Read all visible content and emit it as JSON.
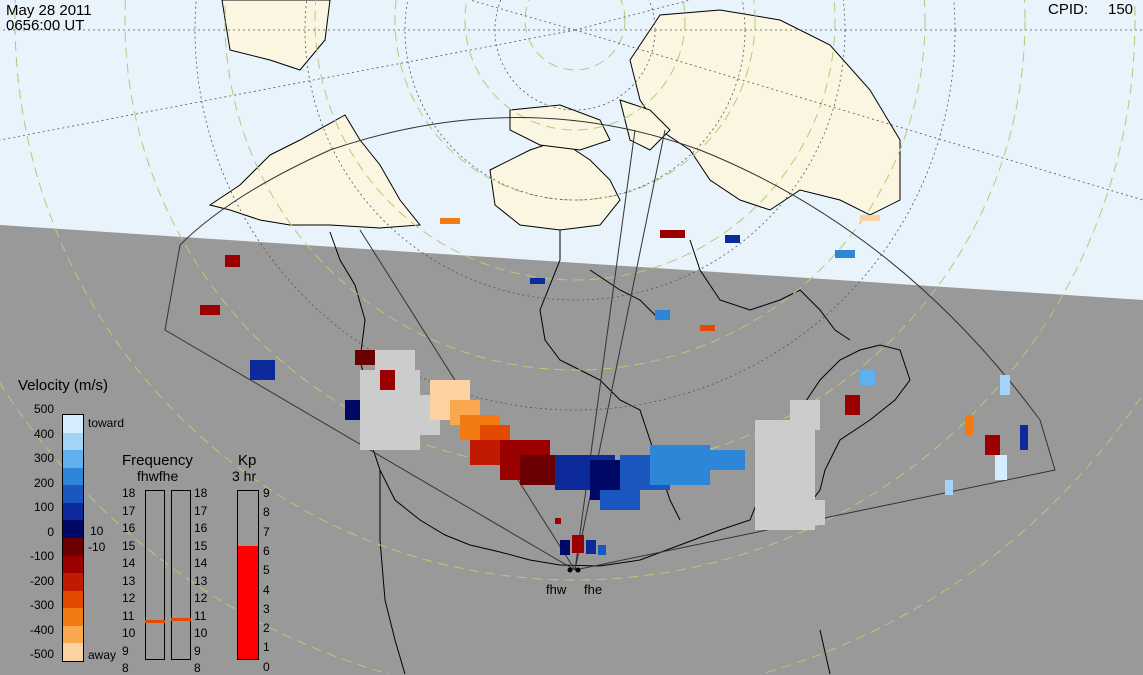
{
  "header": {
    "date": "May 28 2011",
    "time": "0656:00 UT",
    "cpid_label": "CPID:",
    "cpid_value": "150"
  },
  "velocity_legend": {
    "title": "Velocity (m/s)",
    "ticks": [
      "500",
      "400",
      "300",
      "200",
      "100",
      "0",
      "-100",
      "-200",
      "-300",
      "-400",
      "-500"
    ],
    "toward_label": "toward",
    "away_label": "away",
    "threshold_pos": "10",
    "threshold_neg": "-10",
    "colors": [
      "#d6ecff",
      "#a3d3f7",
      "#5fb0ec",
      "#2d86d8",
      "#1a57bf",
      "#0c2a99",
      "#000a66",
      "#6a0000",
      "#9a0000",
      "#c21a00",
      "#e24a00",
      "#f27a10",
      "#f9a850",
      "#fdd2a3"
    ]
  },
  "frequency_panel": {
    "title": "Frequency",
    "radars": "fhwfhe",
    "ticks": [
      "18",
      "17",
      "16",
      "15",
      "14",
      "13",
      "12",
      "11",
      "10",
      "9",
      "8"
    ],
    "fhw_marker": "10.6",
    "fhe_marker": "10.7"
  },
  "kp_panel": {
    "title": "Kp",
    "subtitle": "3 hr",
    "ticks": [
      "9",
      "8",
      "7",
      "6",
      "5",
      "4",
      "3",
      "2",
      "1",
      "0"
    ],
    "value": "6"
  },
  "radars": {
    "west": "fhw",
    "east": "fhe"
  },
  "colors": {
    "daylight": "#e8f3fb",
    "night": "#999999",
    "land": "#fbf6e1",
    "grid": "#c8d48a"
  }
}
